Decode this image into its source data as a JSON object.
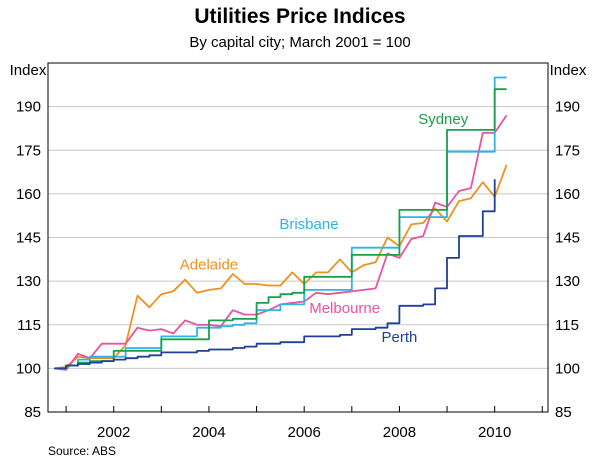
{
  "chart_data": {
    "type": "line",
    "title": "Utilities Price Indices",
    "subtitle": "By capital city; March 2001 = 100",
    "ylabel_left": "Index",
    "ylabel_right": "Index",
    "source": "Source: ABS",
    "ylim": [
      85,
      205
    ],
    "yticks": [
      85,
      100,
      115,
      130,
      145,
      160,
      175,
      190
    ],
    "xlim": [
      2000.62,
      2011.12
    ],
    "xticks": [
      {
        "value": 2002,
        "label": "2002"
      },
      {
        "value": 2004,
        "label": "2004"
      },
      {
        "value": 2006,
        "label": "2006"
      },
      {
        "value": 2008,
        "label": "2008"
      },
      {
        "value": 2010,
        "label": "2010"
      }
    ],
    "grid": true,
    "series": [
      {
        "name": "Adelaide",
        "label": "Adelaide",
        "color": "#f0901e",
        "step": false,
        "label_at": [
          2004.0,
          134
        ],
        "points": [
          [
            2000.75,
            100
          ],
          [
            2001.0,
            100.5
          ],
          [
            2001.25,
            104
          ],
          [
            2001.5,
            103.5
          ],
          [
            2001.75,
            103.5
          ],
          [
            2002.0,
            103.5
          ],
          [
            2002.25,
            108
          ],
          [
            2002.5,
            125
          ],
          [
            2002.75,
            121
          ],
          [
            2003.0,
            125.5
          ],
          [
            2003.25,
            126.5
          ],
          [
            2003.5,
            130.5
          ],
          [
            2003.75,
            126
          ],
          [
            2004.0,
            127
          ],
          [
            2004.25,
            127.5
          ],
          [
            2004.5,
            132.5
          ],
          [
            2004.75,
            129
          ],
          [
            2005.0,
            129
          ],
          [
            2005.25,
            128.5
          ],
          [
            2005.5,
            128.5
          ],
          [
            2005.75,
            133
          ],
          [
            2006.0,
            129
          ],
          [
            2006.25,
            133
          ],
          [
            2006.5,
            133
          ],
          [
            2006.75,
            137.5
          ],
          [
            2007.0,
            133
          ],
          [
            2007.25,
            135.5
          ],
          [
            2007.5,
            136.5
          ],
          [
            2007.75,
            145
          ],
          [
            2008.0,
            142
          ],
          [
            2008.25,
            149.5
          ],
          [
            2008.5,
            150
          ],
          [
            2008.75,
            155
          ],
          [
            2009.0,
            150.5
          ],
          [
            2009.25,
            157.5
          ],
          [
            2009.5,
            158.5
          ],
          [
            2009.75,
            164
          ],
          [
            2010.0,
            159
          ],
          [
            2010.25,
            170
          ]
        ]
      },
      {
        "name": "Melbourne",
        "label": "Melbourne",
        "color": "#e8559f",
        "step": false,
        "label_at": [
          2006.85,
          119
        ],
        "points": [
          [
            2000.75,
            100
          ],
          [
            2001.0,
            99.5
          ],
          [
            2001.25,
            105
          ],
          [
            2001.5,
            103.5
          ],
          [
            2001.75,
            108.5
          ],
          [
            2002.0,
            108.5
          ],
          [
            2002.25,
            108.5
          ],
          [
            2002.5,
            114
          ],
          [
            2002.75,
            113
          ],
          [
            2003.0,
            113.5
          ],
          [
            2003.25,
            112
          ],
          [
            2003.5,
            116.5
          ],
          [
            2003.75,
            115
          ],
          [
            2004.0,
            115
          ],
          [
            2004.25,
            114.5
          ],
          [
            2004.5,
            120
          ],
          [
            2004.75,
            118.5
          ],
          [
            2005.0,
            118.5
          ],
          [
            2005.25,
            120
          ],
          [
            2005.5,
            122
          ],
          [
            2005.75,
            122.5
          ],
          [
            2006.0,
            123
          ],
          [
            2006.25,
            126
          ],
          [
            2006.5,
            125.5
          ],
          [
            2006.75,
            126
          ],
          [
            2007.0,
            126.5
          ],
          [
            2007.25,
            127
          ],
          [
            2007.5,
            127.5
          ],
          [
            2007.75,
            139.5
          ],
          [
            2008.0,
            138
          ],
          [
            2008.25,
            144.5
          ],
          [
            2008.5,
            145.5
          ],
          [
            2008.75,
            157
          ],
          [
            2009.0,
            155.5
          ],
          [
            2009.25,
            161
          ],
          [
            2009.5,
            162
          ],
          [
            2009.75,
            181
          ],
          [
            2010.0,
            181
          ],
          [
            2010.25,
            187
          ]
        ]
      },
      {
        "name": "Brisbane",
        "label": "Brisbane",
        "color": "#2fb3e5",
        "step": true,
        "label_at": [
          2006.1,
          148
        ],
        "points": [
          [
            2000.75,
            100
          ],
          [
            2001.0,
            101
          ],
          [
            2001.25,
            103
          ],
          [
            2001.5,
            104
          ],
          [
            2001.75,
            104
          ],
          [
            2002.0,
            104
          ],
          [
            2002.25,
            107
          ],
          [
            2002.5,
            107
          ],
          [
            2002.75,
            107
          ],
          [
            2003.0,
            111
          ],
          [
            2003.25,
            111
          ],
          [
            2003.5,
            111
          ],
          [
            2003.75,
            114
          ],
          [
            2004.0,
            114
          ],
          [
            2004.25,
            114.5
          ],
          [
            2004.5,
            115
          ],
          [
            2004.75,
            115.5
          ],
          [
            2005.0,
            120
          ],
          [
            2005.25,
            120
          ],
          [
            2005.5,
            122
          ],
          [
            2005.75,
            122
          ],
          [
            2006.0,
            127
          ],
          [
            2006.25,
            127
          ],
          [
            2006.5,
            127
          ],
          [
            2006.75,
            127
          ],
          [
            2007.0,
            141.5
          ],
          [
            2007.25,
            141.5
          ],
          [
            2007.5,
            141.5
          ],
          [
            2007.75,
            141.5
          ],
          [
            2008.0,
            152
          ],
          [
            2008.25,
            152
          ],
          [
            2008.5,
            152
          ],
          [
            2008.75,
            152
          ],
          [
            2009.0,
            174.5
          ],
          [
            2009.25,
            174.5
          ],
          [
            2009.5,
            174.5
          ],
          [
            2009.75,
            174.5
          ],
          [
            2010.0,
            200
          ],
          [
            2010.25,
            200
          ]
        ]
      },
      {
        "name": "Sydney",
        "label": "Sydney",
        "color": "#1aa04a",
        "step": true,
        "label_at": [
          2008.92,
          184
        ],
        "points": [
          [
            2000.75,
            100
          ],
          [
            2001.0,
            101
          ],
          [
            2001.25,
            102
          ],
          [
            2001.5,
            102.5
          ],
          [
            2001.75,
            102.5
          ],
          [
            2002.0,
            106
          ],
          [
            2002.25,
            106
          ],
          [
            2002.5,
            106
          ],
          [
            2002.75,
            106
          ],
          [
            2003.0,
            110
          ],
          [
            2003.25,
            110
          ],
          [
            2003.5,
            110
          ],
          [
            2003.75,
            110
          ],
          [
            2004.0,
            116.5
          ],
          [
            2004.25,
            116.5
          ],
          [
            2004.5,
            117
          ],
          [
            2004.75,
            117
          ],
          [
            2005.0,
            122.5
          ],
          [
            2005.25,
            124.5
          ],
          [
            2005.5,
            125.5
          ],
          [
            2005.75,
            126
          ],
          [
            2006.0,
            131.5
          ],
          [
            2006.25,
            131.5
          ],
          [
            2006.5,
            131.5
          ],
          [
            2006.75,
            131.5
          ],
          [
            2007.0,
            139
          ],
          [
            2007.25,
            139
          ],
          [
            2007.5,
            139
          ],
          [
            2007.75,
            139
          ],
          [
            2008.0,
            154.5
          ],
          [
            2008.25,
            154.5
          ],
          [
            2008.5,
            154.5
          ],
          [
            2008.75,
            154.5
          ],
          [
            2009.0,
            182
          ],
          [
            2009.25,
            182
          ],
          [
            2009.5,
            182
          ],
          [
            2009.75,
            182
          ],
          [
            2010.0,
            196
          ],
          [
            2010.25,
            196
          ]
        ]
      },
      {
        "name": "Perth",
        "label": "Perth",
        "color": "#1f3f99",
        "step": true,
        "label_at": [
          2008.0,
          109
        ],
        "points": [
          [
            2000.75,
            100
          ],
          [
            2001.0,
            101
          ],
          [
            2001.25,
            101.5
          ],
          [
            2001.5,
            102
          ],
          [
            2001.75,
            102.5
          ],
          [
            2002.0,
            103
          ],
          [
            2002.25,
            103.5
          ],
          [
            2002.5,
            104
          ],
          [
            2002.75,
            104.5
          ],
          [
            2003.0,
            105.5
          ],
          [
            2003.25,
            105.5
          ],
          [
            2003.5,
            105.5
          ],
          [
            2003.75,
            106
          ],
          [
            2004.0,
            106.5
          ],
          [
            2004.25,
            106.5
          ],
          [
            2004.5,
            107
          ],
          [
            2004.75,
            107.5
          ],
          [
            2005.0,
            108.5
          ],
          [
            2005.25,
            108.5
          ],
          [
            2005.5,
            109
          ],
          [
            2005.75,
            109
          ],
          [
            2006.0,
            111
          ],
          [
            2006.25,
            111
          ],
          [
            2006.5,
            111
          ],
          [
            2006.75,
            111.5
          ],
          [
            2007.0,
            113.5
          ],
          [
            2007.25,
            113.5
          ],
          [
            2007.5,
            114
          ],
          [
            2007.75,
            115.5
          ],
          [
            2008.0,
            121.5
          ],
          [
            2008.25,
            121.5
          ],
          [
            2008.5,
            122
          ],
          [
            2008.75,
            127.5
          ],
          [
            2009.0,
            138
          ],
          [
            2009.25,
            145.5
          ],
          [
            2009.5,
            145.5
          ],
          [
            2009.75,
            154
          ],
          [
            2010.0,
            165
          ]
        ]
      }
    ]
  }
}
